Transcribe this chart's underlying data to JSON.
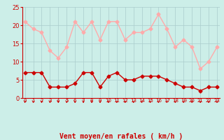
{
  "x": [
    0,
    1,
    2,
    3,
    4,
    5,
    6,
    7,
    8,
    9,
    10,
    11,
    12,
    13,
    14,
    15,
    16,
    17,
    18,
    19,
    20,
    21,
    22,
    23
  ],
  "wind_avg": [
    7,
    7,
    7,
    3,
    3,
    3,
    4,
    7,
    7,
    3,
    6,
    7,
    5,
    5,
    6,
    6,
    6,
    5,
    4,
    3,
    3,
    2,
    3,
    3
  ],
  "wind_gust": [
    21,
    19,
    18,
    13,
    11,
    14,
    21,
    18,
    21,
    16,
    21,
    21,
    16,
    18,
    18,
    19,
    23,
    19,
    14,
    16,
    14,
    8,
    10,
    14
  ],
  "avg_color": "#cc0000",
  "gust_color": "#ffaaaa",
  "background_color": "#cceee8",
  "grid_color": "#aacccc",
  "xlabel": "Vent moyen/en rafales ( km/h )",
  "ylim": [
    0,
    25
  ],
  "yticks": [
    0,
    5,
    10,
    15,
    20,
    25
  ],
  "xlim": [
    -0.3,
    23.3
  ],
  "tick_color": "#cc0000",
  "spine_color": "#cc0000",
  "xlabel_color": "#cc0000",
  "xlabel_fontsize": 7,
  "ytick_fontsize": 6,
  "xtick_fontsize": 5
}
